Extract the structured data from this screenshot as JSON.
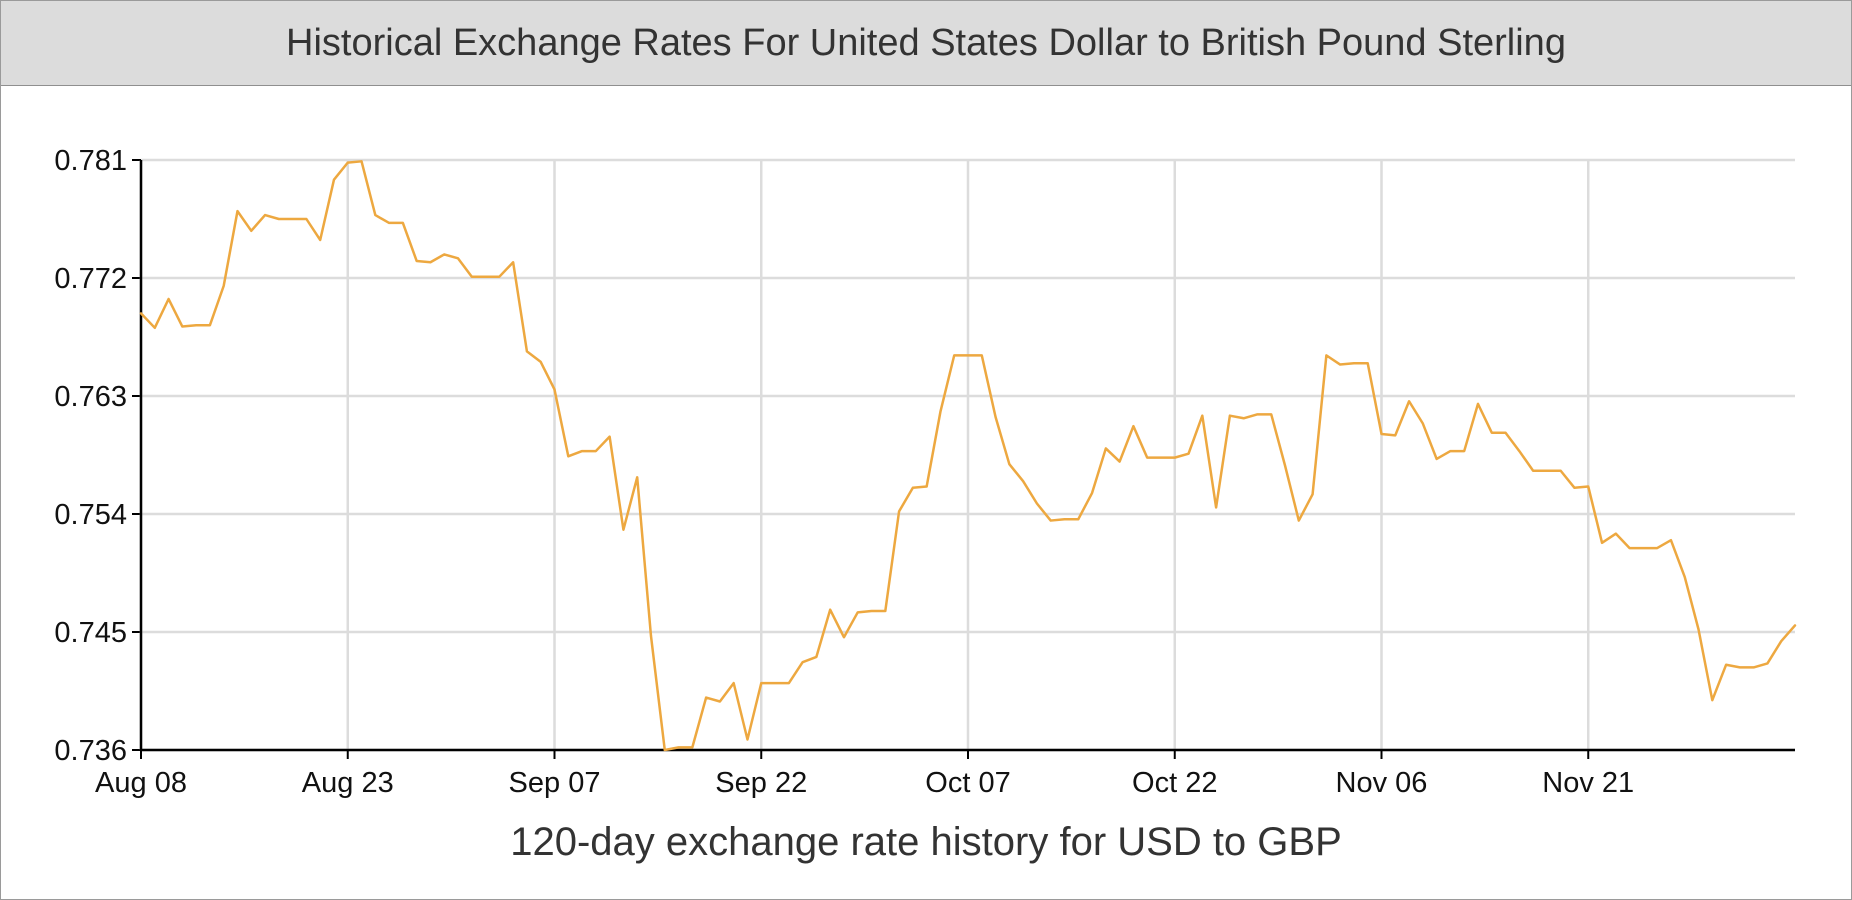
{
  "title": "Historical Exchange Rates For United States Dollar to British Pound Sterling",
  "caption": "120-day exchange rate history for USD to GBP",
  "colors": {
    "line": "#EDA840",
    "grid": "#dcdcdc",
    "axis": "#000000",
    "header": "#dcdcdc"
  },
  "chart_data": {
    "type": "line",
    "title": "Historical Exchange Rates For United States Dollar to British Pound Sterling",
    "xlabel": "120-day exchange rate history for USD to GBP",
    "ylabel": "",
    "grid": true,
    "ylim": [
      0.736,
      0.781
    ],
    "yticks": [
      "0.781",
      "0.772",
      "0.763",
      "0.754",
      "0.745",
      "0.736"
    ],
    "xticks": [
      "Aug 08",
      "Aug 23",
      "Sep 07",
      "Sep 22",
      "Oct 07",
      "Oct 22",
      "Nov 06",
      "Nov 21"
    ],
    "x_start": "Aug 08",
    "x_end": "Dec 07",
    "series": [
      {
        "values": [
          0.7693,
          0.7682,
          0.7704,
          0.7683,
          0.7684,
          0.7684,
          0.7714,
          0.7771,
          0.7756,
          0.7768,
          0.7765,
          0.7765,
          0.7765,
          0.7749,
          0.7795,
          0.7808,
          0.7809,
          0.7768,
          0.7762,
          0.7762,
          0.7733,
          0.7732,
          0.7738,
          0.7735,
          0.7721,
          0.7721,
          0.7721,
          0.7732,
          0.7664,
          0.7656,
          0.7635,
          0.7584,
          0.7588,
          0.7588,
          0.7599,
          0.7528,
          0.7568,
          0.7447,
          0.736,
          0.7362,
          0.7362,
          0.74,
          0.7397,
          0.7411,
          0.7368,
          0.7411,
          0.7411,
          0.7411,
          0.7427,
          0.7431,
          0.7467,
          0.7446,
          0.7465,
          0.7466,
          0.7466,
          0.7542,
          0.756,
          0.7561,
          0.7618,
          0.7661,
          0.7661,
          0.7661,
          0.7614,
          0.7578,
          0.7565,
          0.7548,
          0.7535,
          0.7536,
          0.7536,
          0.7556,
          0.759,
          0.758,
          0.7607,
          0.7583,
          0.7583,
          0.7583,
          0.7586,
          0.7615,
          0.7545,
          0.7615,
          0.7613,
          0.7616,
          0.7616,
          0.7577,
          0.7535,
          0.7555,
          0.7661,
          0.7654,
          0.7655,
          0.7655,
          0.7601,
          0.76,
          0.7626,
          0.7609,
          0.7582,
          0.7588,
          0.7588,
          0.7624,
          0.7602,
          0.7602,
          0.7588,
          0.7573,
          0.7573,
          0.7573,
          0.756,
          0.7561,
          0.7518,
          0.7525,
          0.7514,
          0.7514,
          0.7514,
          0.752,
          0.7492,
          0.7452,
          0.7398,
          0.7425,
          0.7423,
          0.7423,
          0.7426,
          0.7443,
          0.7455
        ]
      }
    ]
  }
}
